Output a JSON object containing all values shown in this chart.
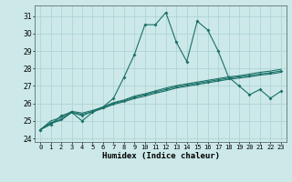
{
  "title": "",
  "xlabel": "Humidex (Indice chaleur)",
  "xlim": [
    -0.5,
    23.5
  ],
  "ylim": [
    23.8,
    31.6
  ],
  "yticks": [
    24,
    25,
    26,
    27,
    28,
    29,
    30,
    31
  ],
  "xticks": [
    0,
    1,
    2,
    3,
    4,
    5,
    6,
    7,
    8,
    9,
    10,
    11,
    12,
    13,
    14,
    15,
    16,
    17,
    18,
    19,
    20,
    21,
    22,
    23
  ],
  "bg_color": "#cce8e8",
  "grid_color": "#aad0d0",
  "line_color": "#1a7068",
  "series1": [
    24.5,
    24.8,
    25.3,
    25.5,
    25.0,
    25.5,
    25.8,
    26.3,
    27.5,
    28.8,
    30.5,
    30.5,
    31.2,
    29.5,
    28.4,
    30.7,
    30.2,
    29.0,
    27.5,
    27.0,
    26.5,
    26.8,
    26.3,
    26.7
  ],
  "series2": [
    24.5,
    24.9,
    25.1,
    25.5,
    25.3,
    25.55,
    25.75,
    26.0,
    26.15,
    26.35,
    26.5,
    26.65,
    26.8,
    26.95,
    27.05,
    27.15,
    27.25,
    27.35,
    27.45,
    27.52,
    27.6,
    27.68,
    27.76,
    27.85
  ],
  "series3": [
    24.5,
    25.0,
    25.2,
    25.55,
    25.45,
    25.6,
    25.8,
    26.05,
    26.2,
    26.42,
    26.55,
    26.72,
    26.88,
    27.02,
    27.12,
    27.22,
    27.32,
    27.42,
    27.52,
    27.58,
    27.68,
    27.78,
    27.85,
    27.95
  ],
  "series4": [
    24.5,
    24.85,
    25.05,
    25.48,
    25.38,
    25.52,
    25.72,
    25.95,
    26.1,
    26.28,
    26.42,
    26.58,
    26.72,
    26.88,
    26.98,
    27.08,
    27.18,
    27.28,
    27.38,
    27.45,
    27.52,
    27.62,
    27.68,
    27.78
  ]
}
